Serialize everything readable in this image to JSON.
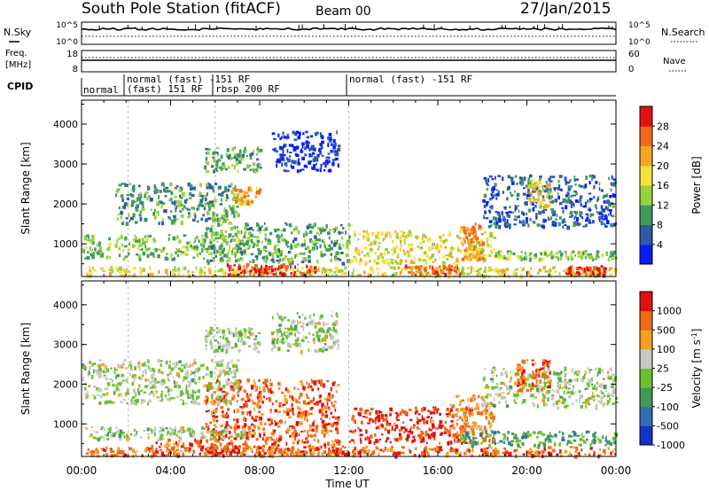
{
  "header": {
    "station": "South Pole Station (fitACF)",
    "beam": "Beam 00",
    "date": "27/Jan/2015"
  },
  "strips": {
    "nsky_label": "N.Sky",
    "nsky_ticks": [
      "10^5",
      "10^0"
    ],
    "nsearch_label": "N.Search",
    "nsearch_ticks": [
      "10^5",
      "10^0"
    ],
    "freq_label_line1": "Freq.",
    "freq_label_line2": "[MHz]",
    "freq_ticks": [
      "18",
      "8"
    ],
    "nave_label": "Nave",
    "nave_ticks": [
      "60",
      "0"
    ],
    "cpid_label": "CPID",
    "cpid_segments": [
      {
        "text": "normal",
        "start_h": 0.0,
        "end_h": 2.1
      },
      {
        "text": "normal (fast) -151 RF",
        "start_h": 2.1,
        "end_h": 6.0
      },
      {
        "text": "(fast) 151 RF",
        "start_h": 2.1,
        "end_h": 6.0
      },
      {
        "text": "rbsp 200 RF",
        "start_h": 6.0,
        "end_h": 12.0
      },
      {
        "text": "normal (fast) -151 RF",
        "start_h": 12.0,
        "end_h": 24.0
      }
    ]
  },
  "chart_data": [
    {
      "type": "heatmap",
      "title": "",
      "quantity": "Power",
      "xlabel": "",
      "ylabel": "Slant Range [km]",
      "x_range_hours": [
        0,
        24
      ],
      "ylim": [
        180,
        4600
      ],
      "y_ticks": [
        1000,
        2000,
        3000,
        4000
      ],
      "colorbar_label": "Power [dB]",
      "colorbar_ticks": [
        "4",
        "8",
        "12",
        "16",
        "20",
        "24",
        "28"
      ],
      "colorbar_colors": [
        "#0a1cff",
        "#2f5aa8",
        "#3f9a5a",
        "#96d23c",
        "#f4e03a",
        "#f5a623",
        "#f06a1a",
        "#e01010"
      ],
      "regions": [
        {
          "t0": 0.0,
          "t1": 24.0,
          "r0": 180,
          "r1": 400,
          "level": 0.55
        },
        {
          "t0": 6.5,
          "t1": 10.5,
          "r0": 200,
          "r1": 480,
          "level": 0.92
        },
        {
          "t0": 14.5,
          "t1": 17.0,
          "r0": 200,
          "r1": 450,
          "level": 0.8
        },
        {
          "t0": 21.5,
          "t1": 23.5,
          "r0": 200,
          "r1": 420,
          "level": 0.85
        },
        {
          "t0": 0.0,
          "t1": 7.5,
          "r0": 600,
          "r1": 1200,
          "level": 0.4
        },
        {
          "t0": 5.5,
          "t1": 12.0,
          "r0": 500,
          "r1": 1500,
          "level": 0.35
        },
        {
          "t0": 12.0,
          "t1": 18.5,
          "r0": 500,
          "r1": 1300,
          "level": 0.55
        },
        {
          "t0": 17.0,
          "t1": 18.0,
          "r0": 600,
          "r1": 1500,
          "level": 0.75
        },
        {
          "t0": 18.5,
          "t1": 24.0,
          "r0": 600,
          "r1": 800,
          "level": 0.4
        },
        {
          "t0": 1.5,
          "t1": 7.0,
          "r0": 1500,
          "r1": 2500,
          "level": 0.3
        },
        {
          "t0": 5.5,
          "t1": 8.0,
          "r0": 2800,
          "r1": 3400,
          "level": 0.35
        },
        {
          "t0": 6.8,
          "t1": 8.0,
          "r0": 2000,
          "r1": 2400,
          "level": 0.7
        },
        {
          "t0": 8.5,
          "t1": 11.5,
          "r0": 2800,
          "r1": 3800,
          "level": 0.1
        },
        {
          "t0": 18.0,
          "t1": 24.0,
          "r0": 1400,
          "r1": 2700,
          "level": 0.2
        },
        {
          "t0": 20.0,
          "t1": 21.0,
          "r0": 1900,
          "r1": 2600,
          "level": 0.55
        }
      ]
    },
    {
      "type": "heatmap",
      "title": "",
      "quantity": "Velocity",
      "xlabel": "Time UT",
      "ylabel": "Slant Range [km]",
      "x_range_hours": [
        0,
        24
      ],
      "x_ticks": [
        "00:00",
        "04:00",
        "08:00",
        "12:00",
        "16:00",
        "20:00",
        "00:00"
      ],
      "ylim": [
        180,
        4600
      ],
      "y_ticks": [
        1000,
        2000,
        3000,
        4000
      ],
      "colorbar_label": "Velocity [m s^-1]",
      "colorbar_ticks": [
        "1000",
        "500",
        "100",
        "25",
        "-25",
        "-100",
        "-500",
        "-1000"
      ],
      "colorbar_colors": [
        "#1432c8",
        "#2f6fb0",
        "#3f9a5a",
        "#6cc030",
        "#c8c8c0",
        "#f4a020",
        "#f06a1a",
        "#e01010"
      ],
      "regions": [
        {
          "t0": 0.0,
          "t1": 24.0,
          "r0": 180,
          "r1": 400,
          "level": 0.8
        },
        {
          "t0": 3.0,
          "t1": 12.0,
          "r0": 200,
          "r1": 600,
          "level": 0.85
        },
        {
          "t0": 5.5,
          "t1": 11.5,
          "r0": 600,
          "r1": 2100,
          "level": 0.85
        },
        {
          "t0": 12.0,
          "t1": 17.5,
          "r0": 500,
          "r1": 1400,
          "level": 0.9
        },
        {
          "t0": 16.5,
          "t1": 18.5,
          "r0": 500,
          "r1": 1700,
          "level": 0.7
        },
        {
          "t0": 17.0,
          "t1": 24.0,
          "r0": 450,
          "r1": 800,
          "level": 0.35
        },
        {
          "t0": 0.0,
          "t1": 7.5,
          "r0": 600,
          "r1": 900,
          "level": 0.5
        },
        {
          "t0": 0.0,
          "t1": 7.0,
          "r0": 1500,
          "r1": 2600,
          "level": 0.5
        },
        {
          "t0": 5.5,
          "t1": 8.0,
          "r0": 2800,
          "r1": 3400,
          "level": 0.5
        },
        {
          "t0": 8.5,
          "t1": 11.5,
          "r0": 2800,
          "r1": 3800,
          "level": 0.5
        },
        {
          "t0": 18.0,
          "t1": 24.0,
          "r0": 1400,
          "r1": 2400,
          "level": 0.5
        },
        {
          "t0": 19.5,
          "t1": 21.0,
          "r0": 1800,
          "r1": 2600,
          "level": 0.82
        }
      ]
    }
  ]
}
